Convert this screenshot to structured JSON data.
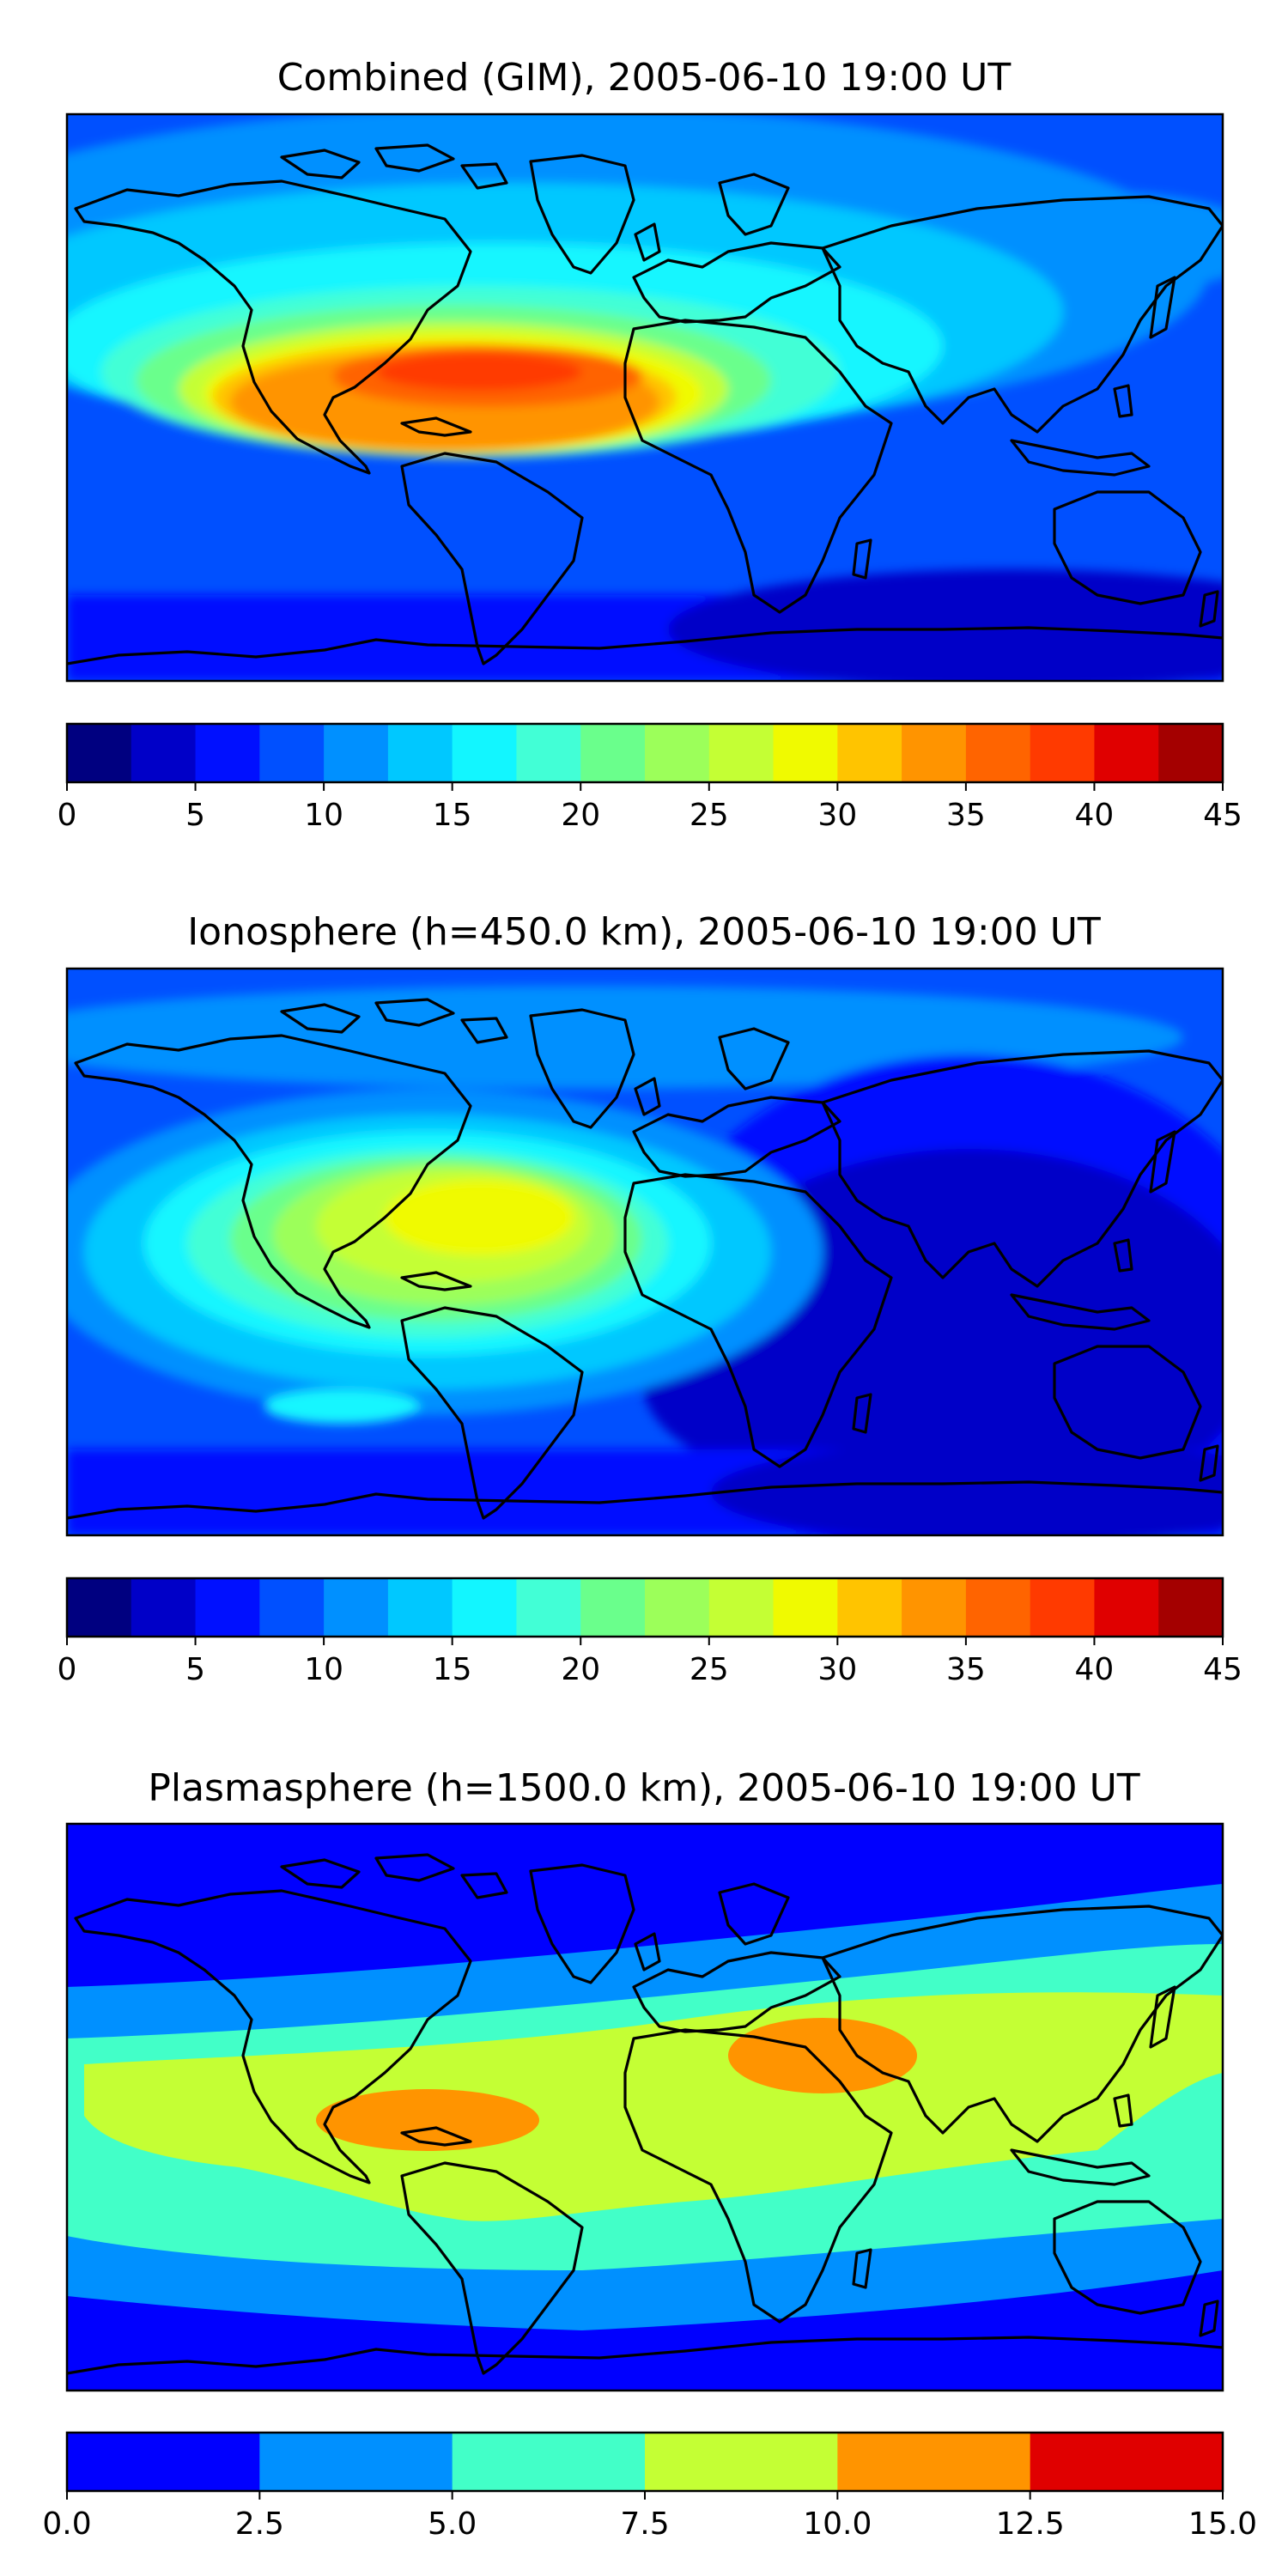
{
  "panels": [
    {
      "title": "Combined (GIM), 2005-06-10 19:00 UT",
      "colorbar": {
        "vmin": 0,
        "vmax": 45,
        "levels": [
          0,
          2.5,
          5,
          7.5,
          10,
          12.5,
          15,
          17.5,
          20,
          22.5,
          25,
          27.5,
          30,
          32.5,
          35,
          37.5,
          40,
          42.5,
          45
        ],
        "colors": [
          "#000080",
          "#0000c8",
          "#0010ff",
          "#0050ff",
          "#0090ff",
          "#00c8ff",
          "#12f6ff",
          "#42ffd6",
          "#6aff8c",
          "#9cff5a",
          "#c4ff34",
          "#f0fa00",
          "#ffc400",
          "#ff9400",
          "#ff6400",
          "#ff3a00",
          "#e00000",
          "#a40000"
        ],
        "tick_labels": [
          "0",
          "5",
          "10",
          "15",
          "20",
          "25",
          "30",
          "35",
          "40",
          "45"
        ]
      }
    },
    {
      "title": "Ionosphere  (h=450.0 km), 2005-06-10 19:00 UT",
      "colorbar": {
        "vmin": 0,
        "vmax": 45,
        "levels": [
          0,
          2.5,
          5,
          7.5,
          10,
          12.5,
          15,
          17.5,
          20,
          22.5,
          25,
          27.5,
          30,
          32.5,
          35,
          37.5,
          40,
          42.5,
          45
        ],
        "colors": [
          "#000080",
          "#0000c8",
          "#0010ff",
          "#0050ff",
          "#0090ff",
          "#00c8ff",
          "#12f6ff",
          "#42ffd6",
          "#6aff8c",
          "#9cff5a",
          "#c4ff34",
          "#f0fa00",
          "#ffc400",
          "#ff9400",
          "#ff6400",
          "#ff3a00",
          "#e00000",
          "#a40000"
        ],
        "tick_labels": [
          "0",
          "5",
          "10",
          "15",
          "20",
          "25",
          "30",
          "35",
          "40",
          "45"
        ]
      }
    },
    {
      "title": "Plasmasphere (h=1500.0 km), 2005-06-10 19:00 UT",
      "colorbar": {
        "vmin": 0,
        "vmax": 15,
        "levels": [
          0,
          2.5,
          5,
          7.5,
          10,
          12.5,
          15
        ],
        "colors": [
          "#0000ff",
          "#0090ff",
          "#42ffc8",
          "#c4ff34",
          "#ff9400",
          "#e00000"
        ],
        "tick_labels": [
          "0.0",
          "2.5",
          "5.0",
          "7.5",
          "10.0",
          "12.5",
          "15.0"
        ]
      }
    }
  ]
}
